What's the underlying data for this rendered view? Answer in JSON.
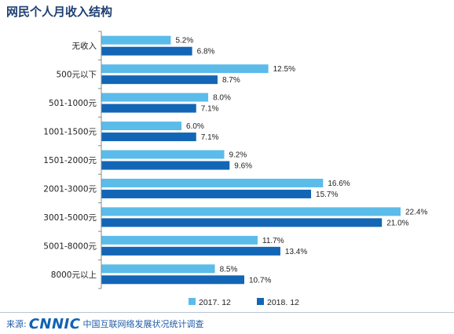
{
  "header": {
    "title": "网民个人月收入结构"
  },
  "footer": {
    "source_label": "来源:",
    "brand": "CNNIC",
    "org": "中国互联网络发展状况统计调查"
  },
  "colors": {
    "series_2017": "#5bbcea",
    "series_2018": "#1366b5",
    "title": "#1f3f73"
  },
  "chart_data": {
    "type": "bar",
    "orientation": "horizontal",
    "title": "网民个人月收入结构",
    "categories": [
      "无收入",
      "500元以下",
      "501-1000元",
      "1001-1500元",
      "1501-2000元",
      "2001-3000元",
      "3001-5000元",
      "5001-8000元",
      "8000元以上"
    ],
    "series": [
      {
        "name": "2017. 12",
        "color": "#5bbcea",
        "values": [
          5.2,
          12.5,
          8.0,
          6.0,
          9.2,
          16.6,
          22.4,
          11.7,
          8.5
        ],
        "labels": [
          "5.2%",
          "12.5%",
          "8.0%",
          "6.0%",
          "9.2%",
          "16.6%",
          "22.4%",
          "11.7%",
          "8.5%"
        ]
      },
      {
        "name": "2018. 12",
        "color": "#1366b5",
        "values": [
          6.8,
          8.7,
          7.1,
          7.1,
          9.6,
          15.7,
          21.0,
          13.4,
          10.7
        ],
        "labels": [
          "6.8%",
          "8.7%",
          "7.1%",
          "7.1%",
          "9.6%",
          "15.7%",
          "21.0%",
          "13.4%",
          "10.7%"
        ]
      }
    ],
    "value_unit": "%",
    "xlim": [
      0,
      24
    ],
    "grid": false,
    "legend": "bottom-center"
  }
}
